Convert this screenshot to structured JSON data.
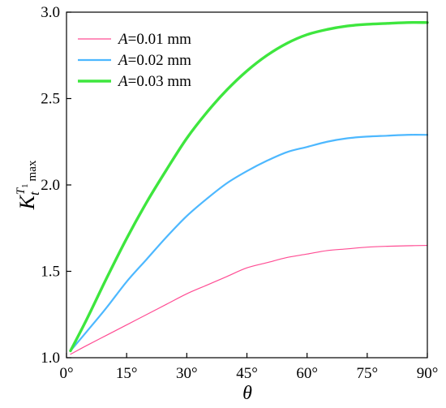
{
  "chart_data": {
    "type": "line",
    "xlabel": "θ",
    "ylabel": {
      "main": "K",
      "sub": "t",
      "sup": "T",
      "sup_sub": "1",
      "sub_suffix": "max"
    },
    "xlim": [
      0,
      90
    ],
    "ylim": [
      1.0,
      3.0
    ],
    "x_ticks": [
      0,
      15,
      30,
      45,
      60,
      75,
      90
    ],
    "x_tick_labels": [
      "0°",
      "15°",
      "30°",
      "45°",
      "60°",
      "75°",
      "90°"
    ],
    "y_ticks": [
      1.0,
      1.5,
      2.0,
      2.5,
      3.0
    ],
    "y_tick_labels": [
      "1.0",
      "1.5",
      "2.0",
      "2.5",
      "3.0"
    ],
    "grid": false,
    "legend_position": "top-left",
    "series": [
      {
        "name": "A=0.01 mm",
        "name_italic": "A",
        "name_rest": "=0.01 mm",
        "color": "#ff4d94",
        "x": [
          1,
          5,
          10,
          15,
          20,
          25,
          30,
          35,
          40,
          45,
          50,
          55,
          60,
          65,
          70,
          75,
          80,
          85,
          90
        ],
        "values": [
          1.02,
          1.07,
          1.13,
          1.19,
          1.25,
          1.31,
          1.37,
          1.42,
          1.47,
          1.52,
          1.55,
          1.58,
          1.6,
          1.62,
          1.63,
          1.64,
          1.645,
          1.648,
          1.65
        ]
      },
      {
        "name": "A=0.02 mm",
        "name_italic": "A",
        "name_rest": "=0.02 mm",
        "color": "#4db8ff",
        "x": [
          1,
          5,
          10,
          15,
          20,
          25,
          30,
          35,
          40,
          45,
          50,
          55,
          60,
          65,
          70,
          75,
          80,
          85,
          90
        ],
        "values": [
          1.04,
          1.15,
          1.29,
          1.44,
          1.57,
          1.7,
          1.82,
          1.92,
          2.01,
          2.08,
          2.14,
          2.19,
          2.22,
          2.25,
          2.27,
          2.28,
          2.285,
          2.29,
          2.29
        ]
      },
      {
        "name": "A=0.03 mm",
        "name_italic": "A",
        "name_rest": "=0.03 mm",
        "color": "#3ee63e",
        "x": [
          1,
          5,
          10,
          15,
          20,
          25,
          30,
          35,
          40,
          45,
          50,
          55,
          60,
          65,
          70,
          75,
          80,
          85,
          90
        ],
        "values": [
          1.04,
          1.22,
          1.46,
          1.69,
          1.9,
          2.09,
          2.27,
          2.42,
          2.55,
          2.66,
          2.75,
          2.82,
          2.87,
          2.9,
          2.92,
          2.93,
          2.935,
          2.94,
          2.94
        ]
      }
    ]
  }
}
